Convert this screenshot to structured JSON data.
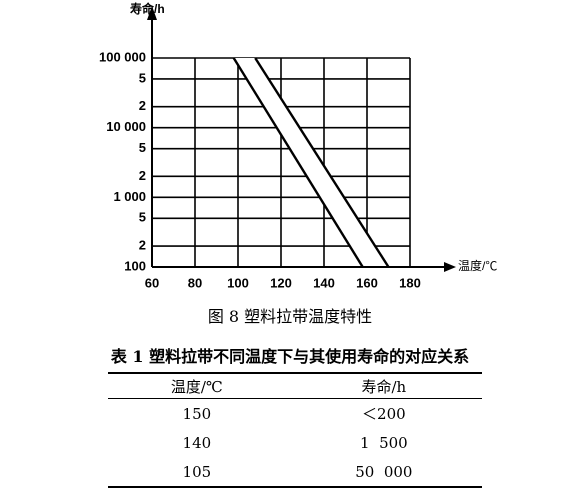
{
  "chart_data": {
    "type": "line",
    "y_label": "寿命/h",
    "x_label": "温度/℃",
    "xlim": [
      60,
      180
    ],
    "xticks": [
      60,
      80,
      100,
      120,
      140,
      160,
      180
    ],
    "ylim": [
      100,
      100000
    ],
    "ylog": true,
    "grid": true,
    "yticks": [
      100,
      {
        "value": 200,
        "label": "2"
      },
      {
        "value": 500,
        "label": "5"
      },
      {
        "value": 1000,
        "label": "1 000"
      },
      {
        "value": 2000,
        "label": "2"
      },
      {
        "value": 5000,
        "label": "5"
      },
      {
        "value": 10000,
        "label": "10 000"
      },
      {
        "value": 20000,
        "label": "2"
      },
      {
        "value": 50000,
        "label": "5"
      },
      {
        "value": 100000,
        "label": "100 000"
      }
    ],
    "lines": [
      {
        "color": "#000000",
        "x": [
          98,
          158
        ],
        "values": [
          100000,
          100
        ]
      },
      {
        "color": "#000000",
        "x": [
          108,
          170
        ],
        "values": [
          100000,
          100
        ]
      }
    ]
  },
  "caption": "图 8  塑料拉带温度特性",
  "table": {
    "title": "表 1  塑料拉带不同温度下与其使用寿命的对应关系",
    "header": [
      "温度/℃",
      "寿命/h"
    ],
    "rows": [
      [
        "150",
        "＜200"
      ],
      [
        "140",
        "1  500"
      ],
      [
        "105",
        "50  000"
      ]
    ]
  }
}
